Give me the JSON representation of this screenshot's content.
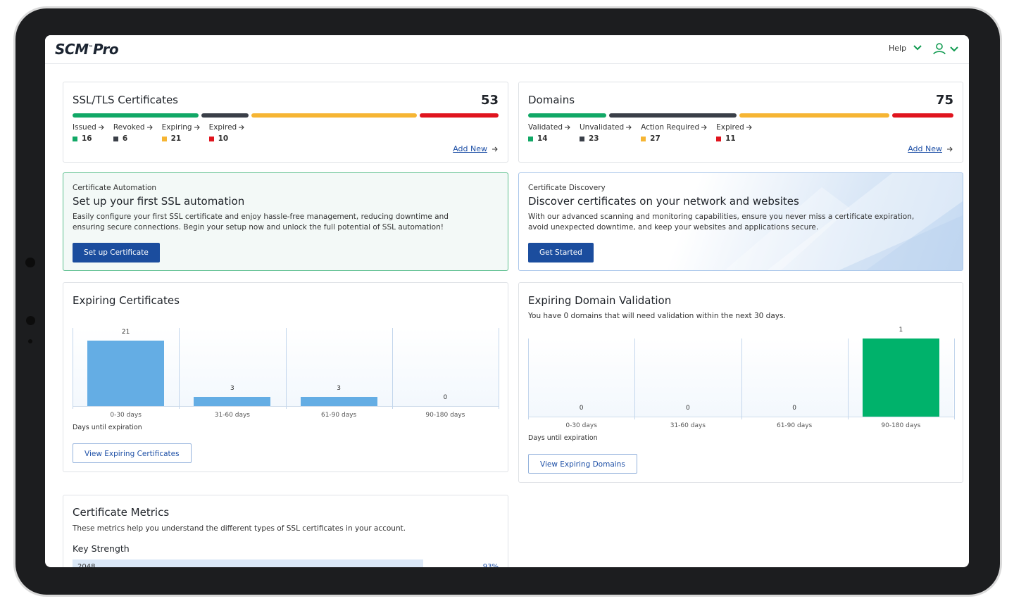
{
  "header": {
    "logo_mark": "SCM",
    "logo_suffix": "Pro",
    "help": "Help"
  },
  "ssl_certificates": {
    "title": "SSL/TLS Certificates",
    "total": 53,
    "add_new": "Add New",
    "items": [
      {
        "label": "Issued",
        "count": 16,
        "color": "#11a866"
      },
      {
        "label": "Revoked",
        "count": 6,
        "color": "#3a3f48"
      },
      {
        "label": "Expiring",
        "count": 21,
        "color": "#f6b533"
      },
      {
        "label": "Expired",
        "count": 10,
        "color": "#e0141e"
      }
    ]
  },
  "domains": {
    "title": "Domains",
    "total": 75,
    "add_new": "Add New",
    "items": [
      {
        "label": "Validated",
        "count": 14,
        "color": "#11a866"
      },
      {
        "label": "Unvalidated",
        "count": 23,
        "color": "#3a3f48"
      },
      {
        "label": "Action Required",
        "count": 27,
        "color": "#f6b533"
      },
      {
        "label": "Expired",
        "count": 11,
        "color": "#e0141e"
      }
    ]
  },
  "automation": {
    "label": "Certificate Automation",
    "heading": "Set up your first SSL automation",
    "body": "Easily configure your first SSL certificate and enjoy hassle-free management, reducing downtime and ensuring secure connections. Begin your setup now and unlock the full potential of SSL automation!",
    "button": "Set up Certificate"
  },
  "discovery": {
    "label": "Certificate Discovery",
    "heading": "Discover certificates on your network and websites",
    "body": "With our advanced scanning and monitoring capabilities, ensure you never miss a certificate expiration, avoid unexpected downtime, and keep your websites and applications secure.",
    "button": "Get Started"
  },
  "expiring_certificates": {
    "title": "Expiring Certificates",
    "chart_data": {
      "type": "bar",
      "categories": [
        "0-30 days",
        "31-60 days",
        "61-90 days",
        "90-180 days"
      ],
      "values": [
        21,
        3,
        3,
        0
      ],
      "color": "#64ade4",
      "x_label": "Days until expiration"
    },
    "button": "View Expiring Certificates"
  },
  "expiring_domains": {
    "title": "Expiring Domain Validation",
    "subtitle": "You have 0 domains that will need validation within the next 30 days.",
    "chart_data": {
      "type": "bar",
      "categories": [
        "0-30 days",
        "31-60 days",
        "61-90 days",
        "90-180 days"
      ],
      "values": [
        0,
        0,
        0,
        1
      ],
      "color": "#00b26b",
      "x_label": "Days until expiration"
    },
    "button": "View Expiring Domains"
  },
  "certificate_metrics": {
    "title": "Certificate Metrics",
    "description": "These metrics help you understand the different types of SSL certificates in your account.",
    "section": "Key Strength",
    "rows": [
      {
        "label": "2048",
        "value": 93,
        "value_label": "93%"
      }
    ]
  }
}
